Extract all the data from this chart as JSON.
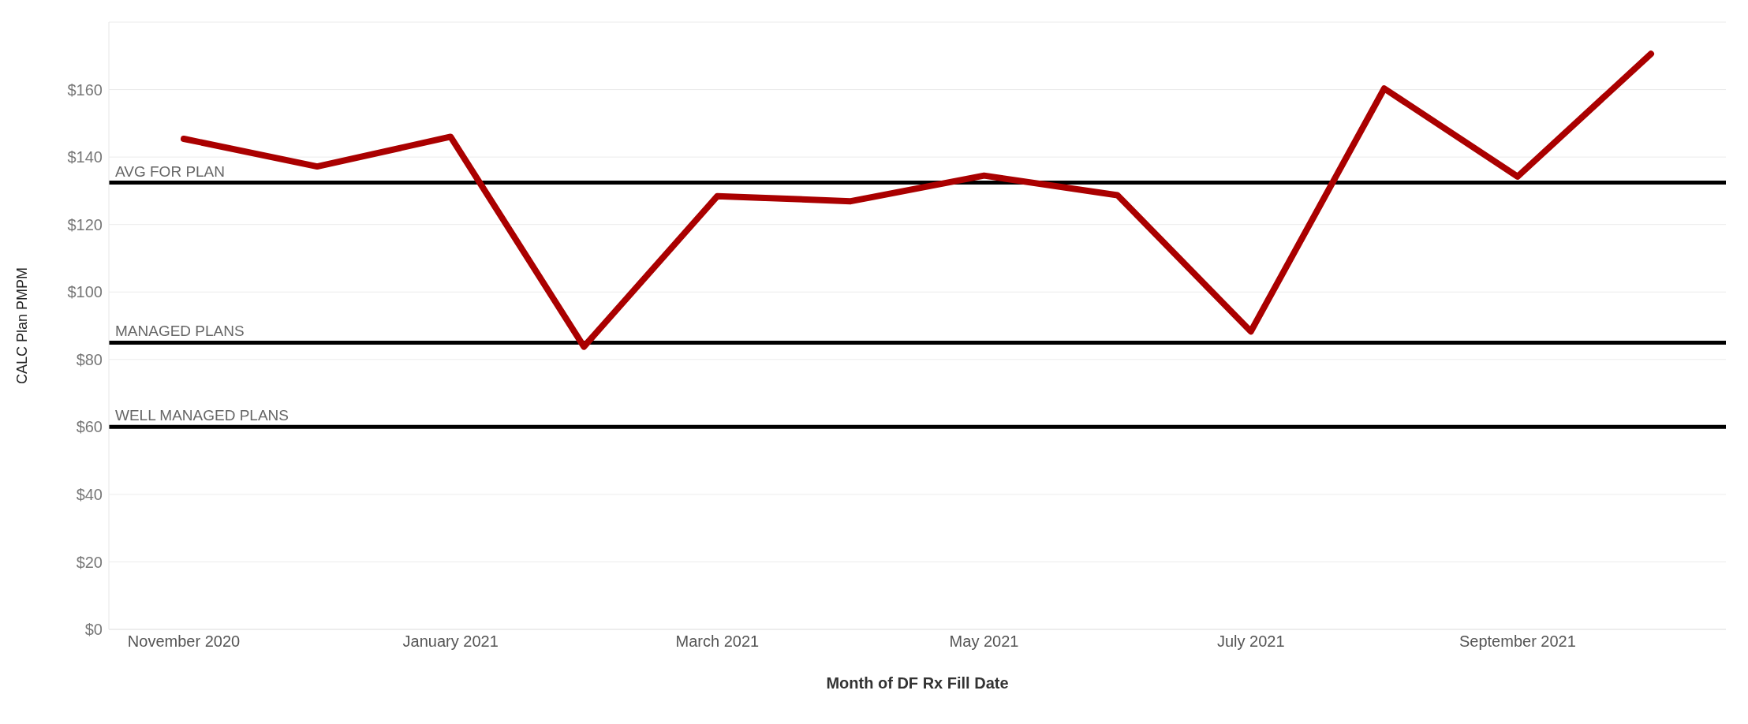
{
  "chart_data": {
    "type": "line",
    "xlabel": "Month of DF Rx Fill Date",
    "ylabel": "CALC Plan PMPM",
    "categories": [
      "November 2020",
      null,
      "January 2021",
      null,
      "March 2021",
      null,
      "May 2021",
      null,
      "July 2021",
      null,
      "September 2021",
      null
    ],
    "series": [
      {
        "color": "#aa0000",
        "values": [
          145.4,
          137.2,
          146,
          83.8,
          128.4,
          126.9,
          134.5,
          128.7,
          88.3,
          160.3,
          134.2,
          170.6
        ]
      }
    ],
    "ylim": [
      0,
      180
    ],
    "yticks": [
      {
        "value": 0,
        "label": "$0"
      },
      {
        "value": 20,
        "label": "$20"
      },
      {
        "value": 40,
        "label": "$40"
      },
      {
        "value": 60,
        "label": "$60"
      },
      {
        "value": 80,
        "label": "$80"
      },
      {
        "value": 100,
        "label": "$100"
      },
      {
        "value": 120,
        "label": "$120"
      },
      {
        "value": 140,
        "label": "$140"
      },
      {
        "value": 160,
        "label": "$160"
      }
    ],
    "ref_lines": [
      {
        "axis": "y",
        "value": 132.4,
        "label": "AVG FOR PLAN",
        "color": "#000000"
      },
      {
        "axis": "y",
        "value": 85,
        "label": "MANAGED PLANS",
        "color": "#000000"
      },
      {
        "axis": "y",
        "value": 60,
        "label": "WELL MANAGED PLANS",
        "color": "#000000"
      }
    ],
    "grid": "y",
    "legend": false,
    "marker": "none",
    "line_style": "solid"
  }
}
